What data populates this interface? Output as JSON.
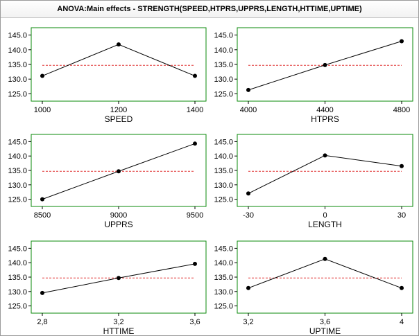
{
  "window": {
    "title": "ANOVA:Main effects - STRENGTH(SPEED,HTPRS,UPPRS,LENGTH,HTTIME,UPTIME)"
  },
  "colors": {
    "frame": "#0a8a0a",
    "line": "#000000",
    "mean_line": "#e03030"
  },
  "chart_data": [
    {
      "type": "line",
      "xlabel": "SPEED",
      "categories": [
        "1000",
        "1200",
        "1400"
      ],
      "values": [
        131.1,
        141.8,
        131.1
      ],
      "grand_mean": 134.7,
      "ylim": [
        122.5,
        147.5
      ],
      "yticks": [
        "145.0",
        "140.0",
        "135.0",
        "130.0",
        "125.0"
      ],
      "grid": false
    },
    {
      "type": "line",
      "xlabel": "HTPRS",
      "categories": [
        "4000",
        "4400",
        "4800"
      ],
      "values": [
        126.3,
        134.8,
        142.9
      ],
      "grand_mean": 134.7,
      "ylim": [
        122.5,
        147.5
      ],
      "yticks": [
        "145.0",
        "140.0",
        "135.0",
        "130.0",
        "125.0"
      ],
      "grid": false
    },
    {
      "type": "line",
      "xlabel": "UPPRS",
      "categories": [
        "8500",
        "9000",
        "9500"
      ],
      "values": [
        125.0,
        134.7,
        144.3
      ],
      "grand_mean": 134.7,
      "ylim": [
        122.5,
        147.5
      ],
      "yticks": [
        "145.0",
        "140.0",
        "135.0",
        "130.0",
        "125.0"
      ],
      "grid": false
    },
    {
      "type": "line",
      "xlabel": "LENGTH",
      "categories": [
        "-30",
        "0",
        "30"
      ],
      "values": [
        127.0,
        140.2,
        136.5
      ],
      "grand_mean": 134.7,
      "ylim": [
        122.5,
        147.5
      ],
      "yticks": [
        "145.0",
        "140.0",
        "135.0",
        "130.0",
        "125.0"
      ],
      "grid": false
    },
    {
      "type": "line",
      "xlabel": "HTTIME",
      "categories": [
        "2,8",
        "3,2",
        "3,6"
      ],
      "values": [
        129.5,
        134.7,
        139.6
      ],
      "grand_mean": 134.7,
      "ylim": [
        122.5,
        147.5
      ],
      "yticks": [
        "145.0",
        "140.0",
        "135.0",
        "130.0",
        "125.0"
      ],
      "grid": false
    },
    {
      "type": "line",
      "xlabel": "UPTIME",
      "categories": [
        "3,2",
        "3,6",
        "4"
      ],
      "values": [
        131.2,
        141.3,
        131.2
      ],
      "grand_mean": 134.7,
      "ylim": [
        122.5,
        147.5
      ],
      "yticks": [
        "145.0",
        "140.0",
        "135.0",
        "130.0",
        "125.0"
      ],
      "grid": false
    }
  ]
}
